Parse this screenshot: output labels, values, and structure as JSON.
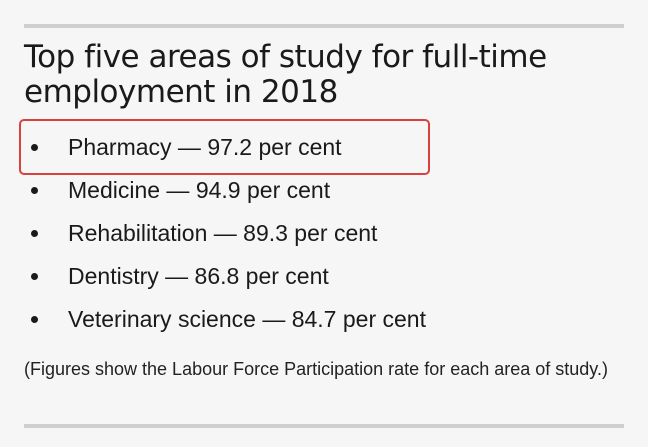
{
  "title": "Top five areas of study for full-time employment in 2018",
  "items": [
    {
      "text": "Pharmacy — 97.2 per cent",
      "highlighted": true
    },
    {
      "text": "Medicine — 94.9 per cent",
      "highlighted": false
    },
    {
      "text": "Rehabilitation — 89.3 per cent",
      "highlighted": false
    },
    {
      "text": "Dentistry — 86.8 per cent",
      "highlighted": false
    },
    {
      "text": "Veterinary science — 84.7 per cent",
      "highlighted": false
    }
  ],
  "note": "(Figures show the Labour Force Participation rate for each area of study.)",
  "colors": {
    "highlight_border": "#d9413e",
    "rule": "#cfcfcf",
    "background": "#f6f6f6"
  }
}
